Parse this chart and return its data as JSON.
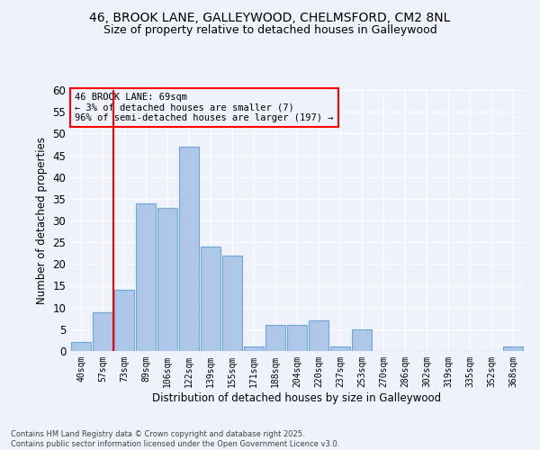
{
  "title_line1": "46, BROOK LANE, GALLEYWOOD, CHELMSFORD, CM2 8NL",
  "title_line2": "Size of property relative to detached houses in Galleywood",
  "xlabel": "Distribution of detached houses by size in Galleywood",
  "ylabel": "Number of detached properties",
  "categories": [
    "40sqm",
    "57sqm",
    "73sqm",
    "89sqm",
    "106sqm",
    "122sqm",
    "139sqm",
    "155sqm",
    "171sqm",
    "188sqm",
    "204sqm",
    "220sqm",
    "237sqm",
    "253sqm",
    "270sqm",
    "286sqm",
    "302sqm",
    "319sqm",
    "335sqm",
    "352sqm",
    "368sqm"
  ],
  "values": [
    2,
    9,
    14,
    34,
    33,
    47,
    24,
    22,
    1,
    6,
    6,
    7,
    1,
    5,
    0,
    0,
    0,
    0,
    0,
    0,
    1
  ],
  "bar_color": "#aec6e8",
  "bar_edge_color": "#6fa8d8",
  "red_line_x": 1.5,
  "annotation_title": "46 BROOK LANE: 69sqm",
  "annotation_line1": "← 3% of detached houses are smaller (7)",
  "annotation_line2": "96% of semi-detached houses are larger (197) →",
  "ylim": [
    0,
    60
  ],
  "yticks": [
    0,
    5,
    10,
    15,
    20,
    25,
    30,
    35,
    40,
    45,
    50,
    55,
    60
  ],
  "background_color": "#eef2fa",
  "grid_color": "#ffffff",
  "footer_line1": "Contains HM Land Registry data © Crown copyright and database right 2025.",
  "footer_line2": "Contains public sector information licensed under the Open Government Licence v3.0."
}
